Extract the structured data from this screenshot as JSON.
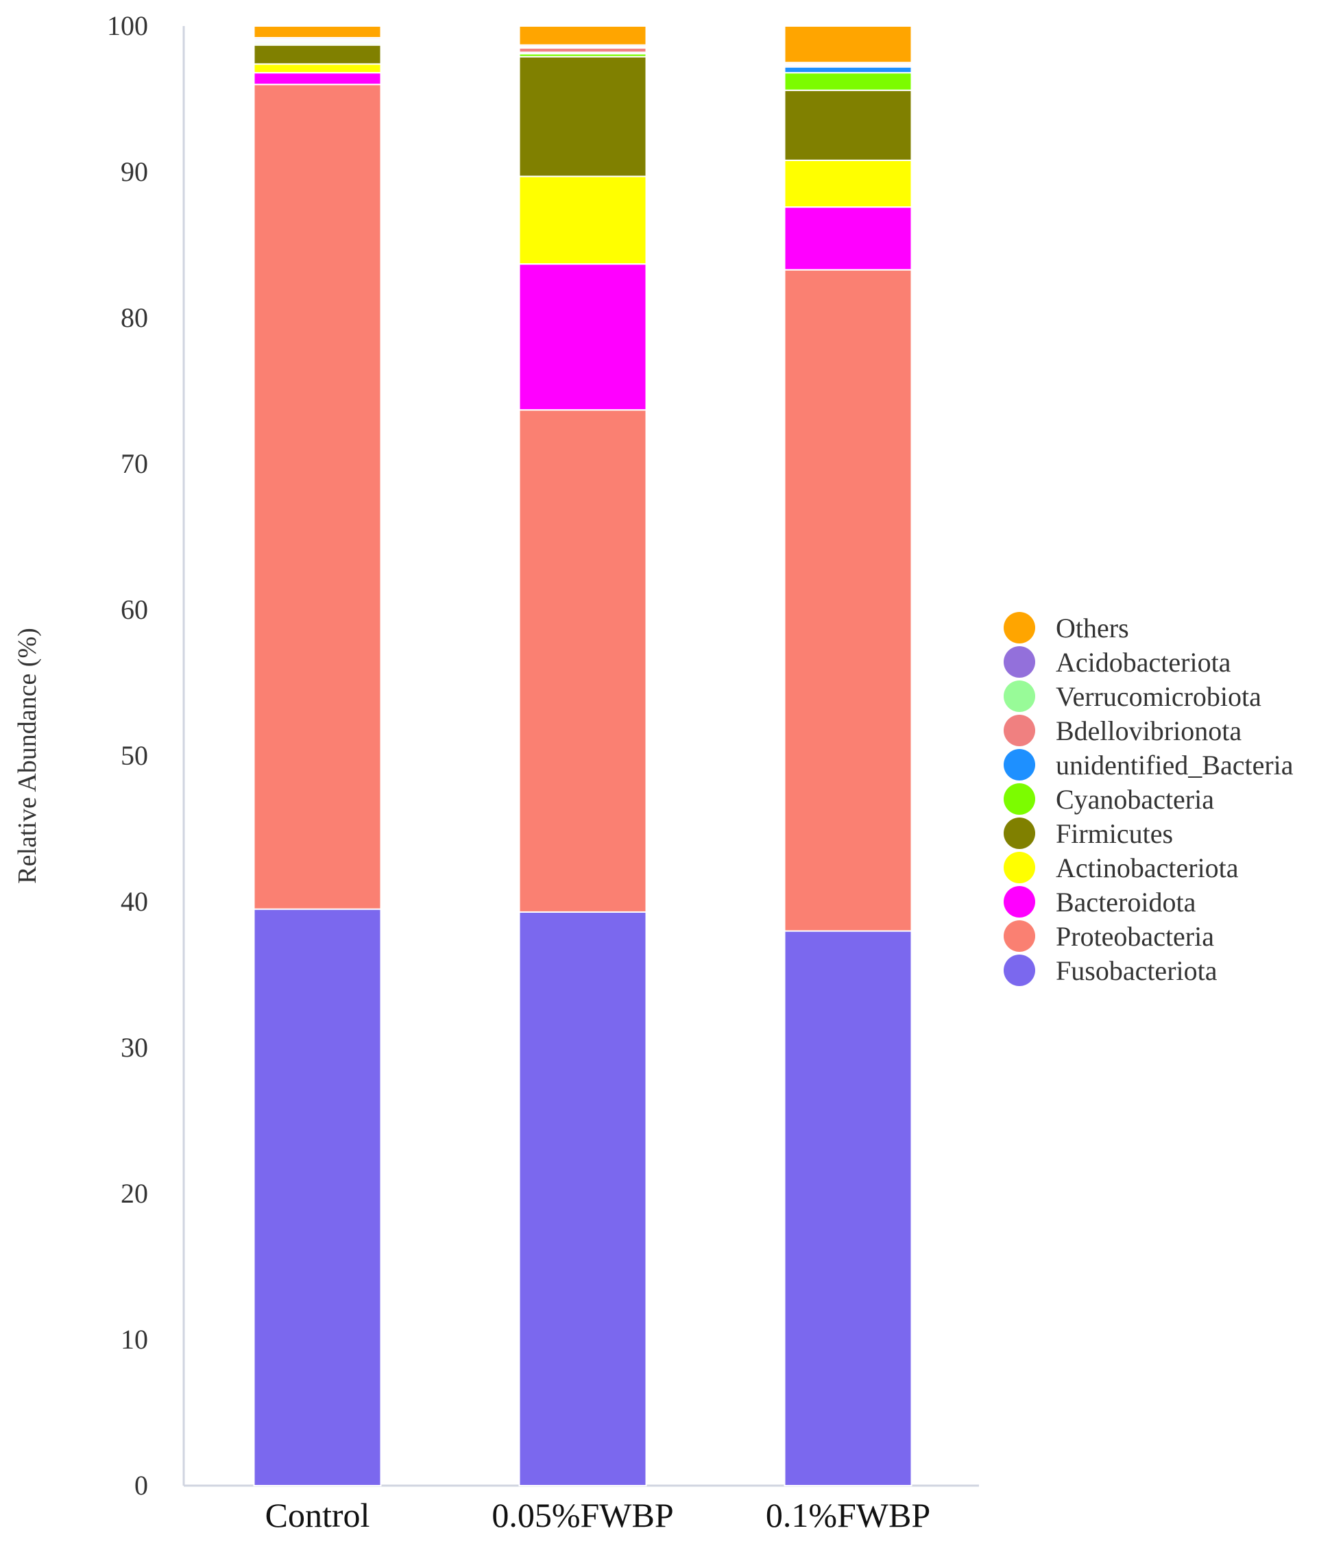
{
  "chart_data": {
    "type": "bar",
    "stacked": true,
    "title": "",
    "xlabel": "",
    "ylabel": "Relative Abundance (%)",
    "ylim": [
      0,
      100
    ],
    "yticks": [
      0,
      10,
      20,
      30,
      40,
      50,
      60,
      70,
      80,
      90,
      100
    ],
    "grid": false,
    "legend_position": "right",
    "categories": [
      "Control",
      "0.05%FWBP",
      "0.1%FWBP"
    ],
    "series": [
      {
        "name": "Fusobacteriota",
        "color": "#7b68ee",
        "values": [
          39.5,
          39.3,
          38.0
        ]
      },
      {
        "name": "Proteobacteria",
        "color": "#fa8072",
        "values": [
          56.5,
          34.4,
          45.3
        ]
      },
      {
        "name": "Bacteroidota",
        "color": "#ff00ff",
        "values": [
          0.8,
          10.0,
          4.3
        ]
      },
      {
        "name": "Actinobacteriota",
        "color": "#ffff00",
        "values": [
          0.6,
          6.0,
          3.2
        ]
      },
      {
        "name": "Firmicutes",
        "color": "#808000",
        "values": [
          1.3,
          8.2,
          4.8
        ]
      },
      {
        "name": "Cyanobacteria",
        "color": "#7cfc00",
        "values": [
          0.1,
          0.2,
          1.2
        ]
      },
      {
        "name": "unidentified_Bacteria",
        "color": "#1e90ff",
        "values": [
          0.1,
          0.1,
          0.4
        ]
      },
      {
        "name": "Bdellovibrionota",
        "color": "#f08080",
        "values": [
          0.1,
          0.3,
          0.1
        ]
      },
      {
        "name": "Verrucomicrobiota",
        "color": "#98fb98",
        "values": [
          0.1,
          0.1,
          0.1
        ]
      },
      {
        "name": "Acidobacteriota",
        "color": "#9370db",
        "values": [
          0.1,
          0.1,
          0.1
        ]
      },
      {
        "name": "Others",
        "color": "#ffa500",
        "values": [
          0.8,
          1.3,
          2.5
        ]
      }
    ]
  }
}
